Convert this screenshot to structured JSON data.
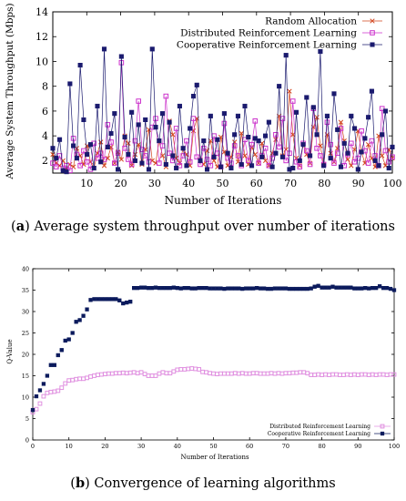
{
  "figure_a": {
    "caption_letter": "a",
    "caption_text": "Average system throughput over number of iterations",
    "chart_data": {
      "type": "line",
      "title": "",
      "xlabel": "Number of Iterations",
      "ylabel": "Average System Throughput (Mbps)",
      "xlim": [
        0,
        100
      ],
      "ylim": [
        1,
        14
      ],
      "xticks": [
        10,
        20,
        30,
        40,
        50,
        60,
        70,
        80,
        90,
        100
      ],
      "yticks": [
        2,
        4,
        6,
        8,
        10,
        12,
        14
      ],
      "grid": false,
      "legend_position": "top-right",
      "series": [
        {
          "name": "Random Allocation",
          "color": "#d2451e",
          "marker": "x",
          "values": [
            2.5,
            1.8,
            1.6,
            2.0,
            1.3,
            1.7,
            1.5,
            3.0,
            2.4,
            1.7,
            3.2,
            1.9,
            1.4,
            2.6,
            3.5,
            1.6,
            2.2,
            3.1,
            1.8,
            2.7,
            2.1,
            4.0,
            3.4,
            1.6,
            2.5,
            3.3,
            1.7,
            2.9,
            4.5,
            2.0,
            1.8,
            3.6,
            2.4,
            1.5,
            5.2,
            4.1,
            2.2,
            1.8,
            3.0,
            2.5,
            1.6,
            4.4,
            5.4,
            2.1,
            1.7,
            2.8,
            3.6,
            2.0,
            1.5,
            3.9,
            2.7,
            1.6,
            2.3,
            3.5,
            1.9,
            4.2,
            2.4,
            1.7,
            3.1,
            2.5,
            1.8,
            3.4,
            2.0,
            1.6,
            2.6,
            3.7,
            5.6,
            2.4,
            2.9,
            7.6,
            4.1,
            2.2,
            1.6,
            3.3,
            2.5,
            1.8,
            4.7,
            5.5,
            3.2,
            1.7,
            4.1,
            2.6,
            1.9,
            3.0,
            5.1,
            3.6,
            2.1,
            1.6,
            2.9,
            4.4,
            2.7,
            1.8,
            3.3,
            2.2,
            1.5,
            4.0,
            2.4,
            1.6,
            2.9,
            2.2
          ]
        },
        {
          "name": "Distributed Reinforcement Learning",
          "color": "#cc33cc",
          "marker": "square-open",
          "values": [
            1.8,
            1.5,
            2.4,
            1.4,
            1.6,
            1.2,
            3.8,
            2.5,
            1.6,
            2.8,
            1.9,
            1.3,
            3.4,
            2.2,
            2.6,
            2.1,
            4.9,
            3.5,
            1.8,
            2.6,
            9.9,
            3.0,
            2.1,
            1.7,
            3.6,
            6.8,
            2.9,
            2.4,
            1.9,
            4.7,
            5.4,
            1.8,
            3.2,
            7.2,
            2.6,
            2.0,
            4.6,
            1.6,
            2.4,
            3.6,
            1.9,
            5.4,
            2.3,
            1.7,
            3.0,
            2.1,
            1.6,
            4.0,
            2.6,
            1.5,
            5.0,
            2.2,
            1.8,
            3.2,
            2.4,
            1.6,
            3.7,
            2.0,
            3.3,
            5.2,
            1.8,
            2.4,
            3.0,
            1.6,
            2.2,
            4.1,
            3.1,
            5.4,
            2.0,
            2.6,
            6.8,
            1.9,
            1.5,
            3.4,
            2.8,
            1.7,
            6.2,
            3.0,
            2.4,
            1.7,
            5.1,
            3.3,
            1.8,
            2.6,
            4.6,
            1.6,
            2.5,
            3.4,
            1.9,
            2.2,
            4.4,
            2.8,
            1.8,
            3.6,
            2.4,
            1.6,
            6.2,
            2.8,
            1.9,
            2.3
          ]
        },
        {
          "name": "Cooperative Reinforcement Learning",
          "color": "#1a1a6e",
          "marker": "square-filled",
          "values": [
            3.0,
            2.2,
            3.7,
            1.2,
            1.1,
            8.2,
            3.2,
            2.2,
            9.7,
            5.3,
            2.5,
            3.3,
            1.4,
            6.4,
            1.9,
            11.0,
            3.1,
            4.2,
            5.8,
            1.3,
            10.4,
            3.9,
            2.5,
            5.9,
            2.0,
            4.9,
            1.8,
            5.3,
            1.3,
            11.0,
            4.7,
            3.6,
            5.8,
            1.7,
            5.1,
            2.4,
            1.4,
            6.4,
            3.0,
            1.6,
            4.6,
            7.2,
            8.1,
            2.0,
            3.6,
            1.3,
            5.6,
            2.3,
            3.7,
            1.5,
            5.8,
            2.6,
            1.4,
            4.1,
            5.6,
            1.7,
            6.4,
            3.9,
            1.6,
            3.8,
            3.6,
            2.3,
            4.0,
            5.1,
            1.5,
            2.6,
            8.0,
            2.3,
            10.5,
            1.3,
            1.4,
            5.9,
            2.0,
            3.3,
            7.1,
            2.4,
            6.3,
            4.1,
            10.8,
            1.6,
            5.6,
            2.2,
            7.4,
            4.5,
            1.5,
            3.4,
            2.6,
            5.6,
            4.6,
            1.3,
            2.7,
            3.8,
            5.5,
            7.6,
            2.0,
            1.6,
            4.1,
            6.0,
            1.4,
            3.1
          ]
        }
      ]
    }
  },
  "figure_b": {
    "caption_letter": "b",
    "caption_text": "Convergence of learning algorithms",
    "chart_data": {
      "type": "line",
      "title": "",
      "xlabel": "Number of Iterations",
      "ylabel": "Q-Value",
      "xlim": [
        0,
        100
      ],
      "ylim": [
        0,
        40
      ],
      "xticks": [
        0,
        10,
        20,
        30,
        40,
        50,
        60,
        70,
        80,
        90,
        100
      ],
      "yticks": [
        0,
        5,
        10,
        15,
        20,
        25,
        30,
        35,
        40
      ],
      "grid": false,
      "legend_position": "bottom-right",
      "series": [
        {
          "name": "Distributed Reinforcement Learning",
          "color": "#e090e0",
          "marker": "square-open",
          "values": [
            6.5,
            7.2,
            8.5,
            10.2,
            11.0,
            11.2,
            11.3,
            11.5,
            12.2,
            13.2,
            13.9,
            14.0,
            14.2,
            14.3,
            14.3,
            14.5,
            14.8,
            15.0,
            15.2,
            15.3,
            15.4,
            15.5,
            15.5,
            15.6,
            15.6,
            15.7,
            15.6,
            15.7,
            15.8,
            15.6,
            15.8,
            15.4,
            15.0,
            15.0,
            15.0,
            15.5,
            15.8,
            15.6,
            15.6,
            16.0,
            16.4,
            16.5,
            16.5,
            16.6,
            16.7,
            16.6,
            16.5,
            15.9,
            15.8,
            15.6,
            15.5,
            15.4,
            15.5,
            15.5,
            15.5,
            15.5,
            15.6,
            15.5,
            15.6,
            15.5,
            15.5,
            15.6,
            15.6,
            15.5,
            15.5,
            15.5,
            15.6,
            15.5,
            15.6,
            15.5,
            15.6,
            15.6,
            15.7,
            15.7,
            15.8,
            15.8,
            15.6,
            15.2,
            15.2,
            15.3,
            15.2,
            15.3,
            15.2,
            15.3,
            15.3,
            15.2,
            15.2,
            15.3,
            15.2,
            15.3,
            15.2,
            15.3,
            15.3,
            15.2,
            15.3,
            15.2,
            15.3,
            15.3,
            15.2,
            15.3,
            15.3
          ]
        },
        {
          "name": "Cooperative Reinforcement Learning",
          "color": "#0b1a5c",
          "marker": "square-filled",
          "values": [
            7.0,
            10.2,
            11.6,
            13.1,
            15.0,
            17.5,
            17.5,
            19.8,
            21.0,
            23.2,
            23.5,
            25.0,
            27.6,
            28.0,
            29.0,
            30.5,
            32.7,
            32.9,
            32.9,
            32.9,
            32.9,
            32.9,
            32.9,
            32.9,
            32.6,
            31.9,
            32.1,
            32.3,
            35.5,
            35.5,
            35.6,
            35.6,
            35.5,
            35.5,
            35.6,
            35.5,
            35.5,
            35.5,
            35.5,
            35.6,
            35.5,
            35.4,
            35.5,
            35.5,
            35.4,
            35.4,
            35.5,
            35.5,
            35.5,
            35.4,
            35.4,
            35.4,
            35.4,
            35.3,
            35.4,
            35.4,
            35.4,
            35.4,
            35.3,
            35.4,
            35.4,
            35.4,
            35.5,
            35.4,
            35.4,
            35.3,
            35.3,
            35.4,
            35.4,
            35.4,
            35.4,
            35.3,
            35.3,
            35.3,
            35.3,
            35.3,
            35.3,
            35.4,
            35.8,
            36.0,
            35.6,
            35.6,
            35.6,
            35.8,
            35.6,
            35.6,
            35.6,
            35.6,
            35.6,
            35.4,
            35.4,
            35.4,
            35.5,
            35.4,
            35.5,
            35.5,
            35.9,
            35.5,
            35.5,
            35.3,
            35.0
          ]
        }
      ]
    }
  }
}
